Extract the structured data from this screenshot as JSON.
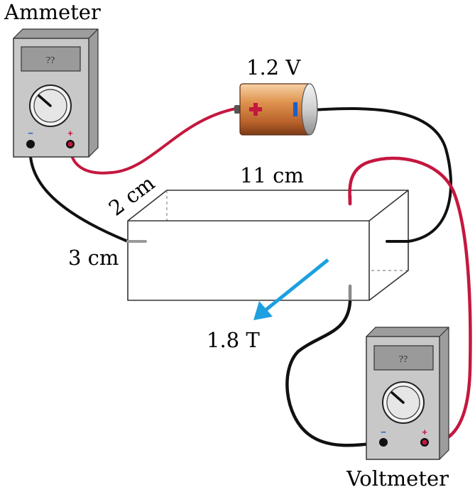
{
  "labels": {
    "ammeter": "Ammeter",
    "voltmeter": "Voltmeter",
    "battery_voltage": "1.2 V",
    "length": "11 cm",
    "depth": "2 cm",
    "height": "3 cm",
    "field": "1.8 T"
  },
  "ammeter": {
    "reading": "??",
    "minus": "−",
    "plus": "+"
  },
  "voltmeter": {
    "reading": "??",
    "minus": "−",
    "plus": "+"
  },
  "battery": {
    "plus": "+",
    "minus": "−"
  },
  "colors": {
    "red_wire": "#c4173f",
    "black_wire": "#111111",
    "field_arrow": "#1ea0e0",
    "meter_body": "#c8c8c8",
    "battery_copper": "#c8773a",
    "battery_cap": "#cfcfcf"
  }
}
